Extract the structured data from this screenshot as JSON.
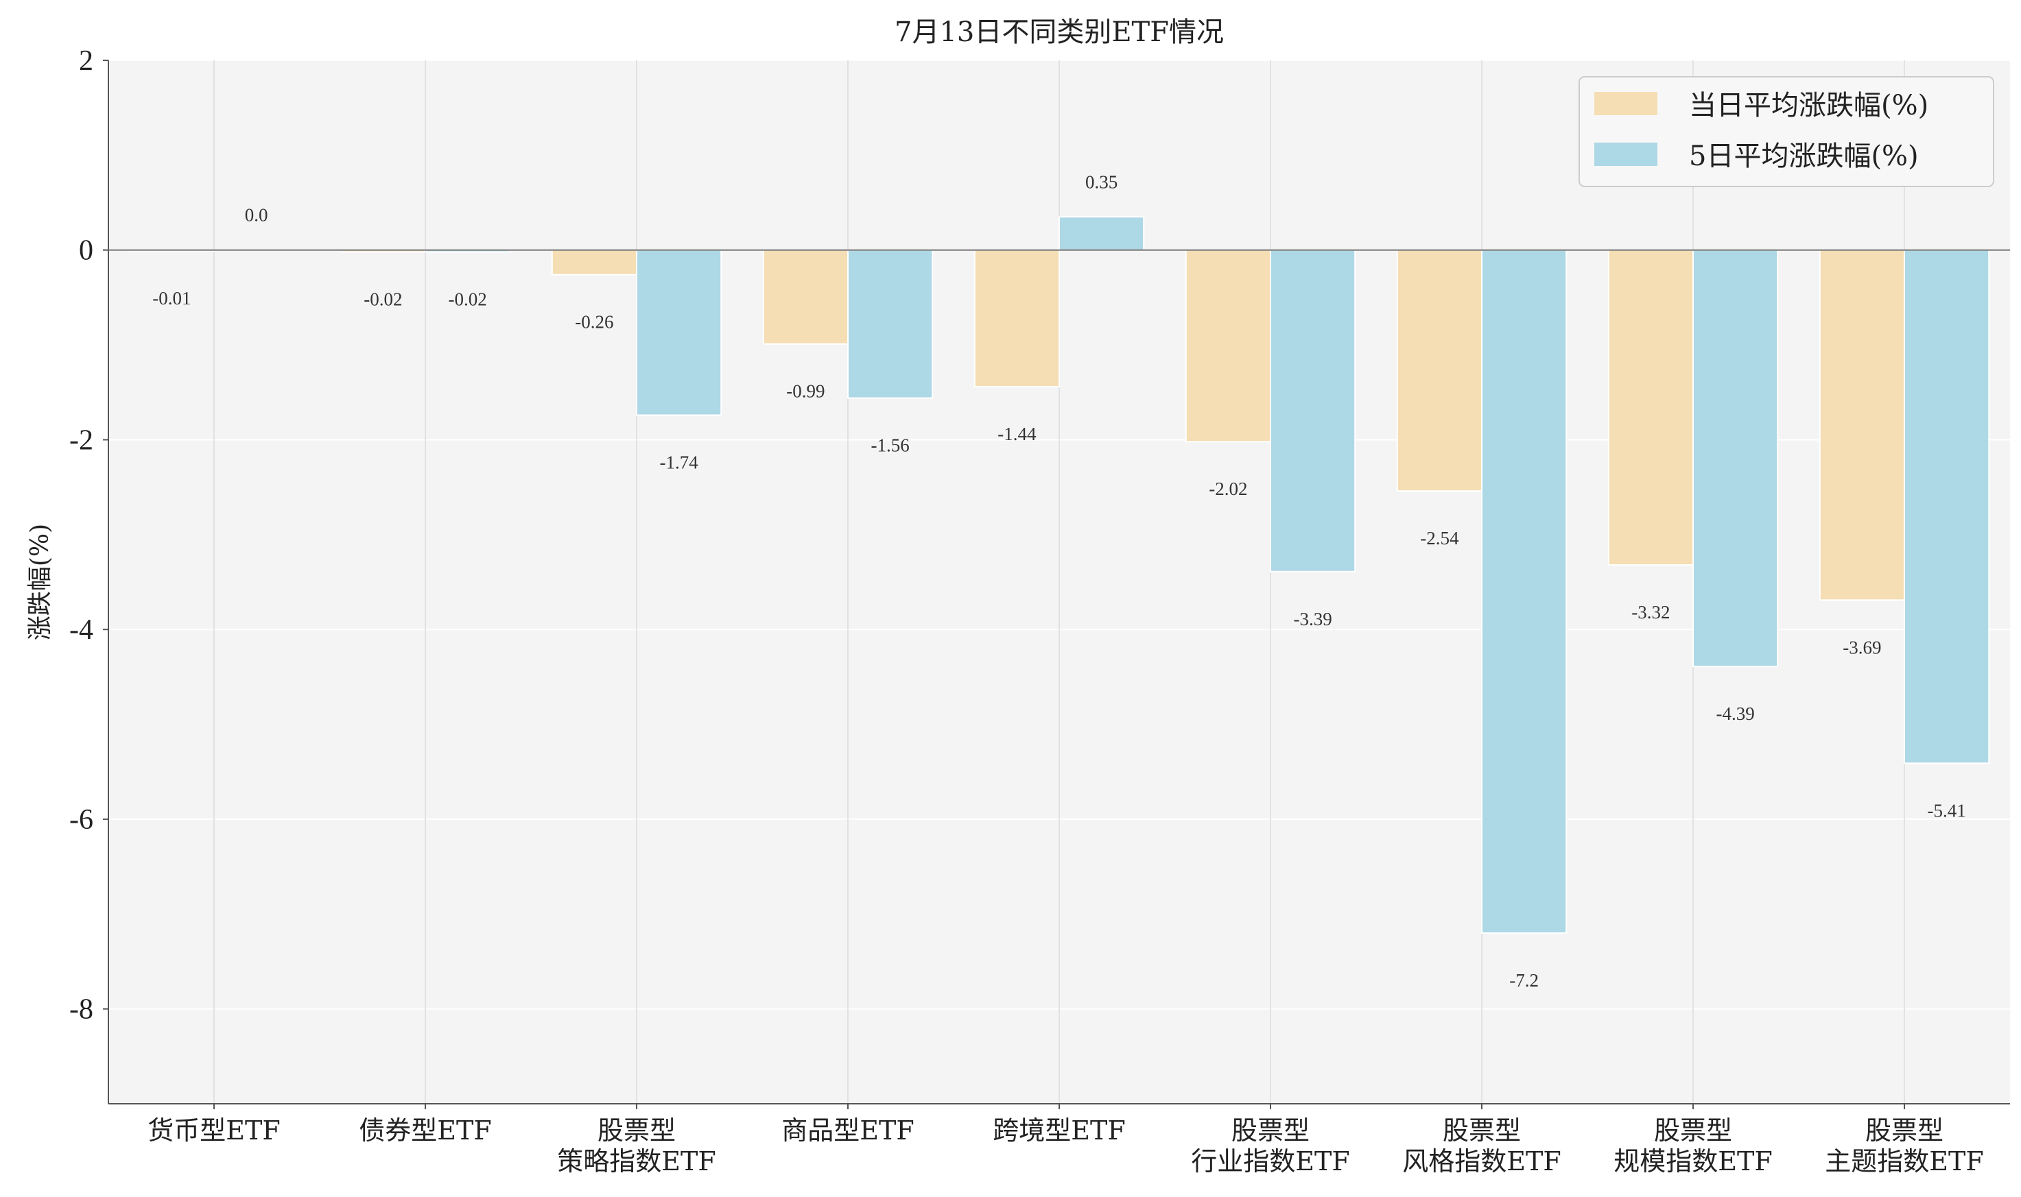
{
  "chart_data": {
    "type": "bar",
    "title": "7月13日不同类别ETF情况",
    "xlabel": "",
    "ylabel": "涨跌幅(%)",
    "ylim": [
      -9,
      2
    ],
    "yticks": [
      -8,
      -6,
      -4,
      -2,
      0,
      2
    ],
    "grid": true,
    "legend_position": "top-right",
    "categories": [
      [
        "货币型ETF"
      ],
      [
        "债券型ETF"
      ],
      [
        "股票型",
        "策略指数ETF"
      ],
      [
        "商品型ETF"
      ],
      [
        "跨境型ETF"
      ],
      [
        "股票型",
        "行业指数ETF"
      ],
      [
        "股票型",
        "风格指数ETF"
      ],
      [
        "股票型",
        "规模指数ETF"
      ],
      [
        "股票型",
        "主题指数ETF"
      ]
    ],
    "series": [
      {
        "name": "当日平均涨跌幅(%)",
        "color": "#f5deb3",
        "values": [
          -0.01,
          -0.02,
          -0.26,
          -0.99,
          -1.44,
          -2.02,
          -2.54,
          -3.32,
          -3.69
        ],
        "labels": [
          "-0.01",
          "-0.02",
          "-0.26",
          "-0.99",
          "-1.44",
          "-2.02",
          "-2.54",
          "-3.32",
          "-3.69"
        ]
      },
      {
        "name": "5日平均涨跌幅(%)",
        "color": "#add8e6",
        "values": [
          0.0,
          -0.02,
          -1.74,
          -1.56,
          0.35,
          -3.39,
          -7.2,
          -4.39,
          -5.41
        ],
        "labels": [
          "0.0",
          "-0.02",
          "-1.74",
          "-1.56",
          "0.35",
          "-3.39",
          "-7.2",
          "-4.39",
          "-5.41"
        ]
      }
    ]
  }
}
